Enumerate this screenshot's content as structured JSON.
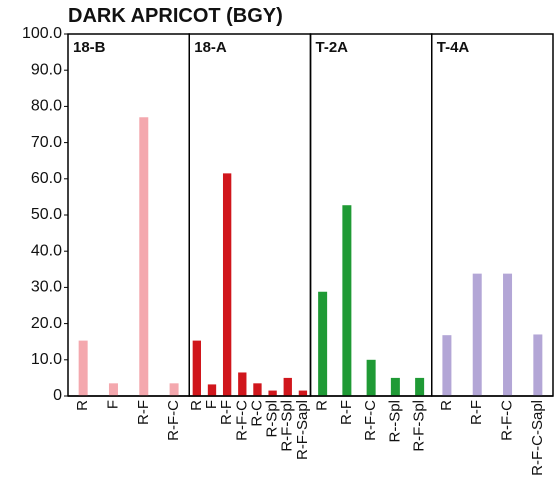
{
  "chart_data": {
    "type": "bar",
    "title": "DARK APRICOT (BGY)",
    "ylim": [
      0,
      100
    ],
    "yticks": [
      0,
      {
        "value": 10,
        "label": "10.0"
      },
      {
        "value": 20,
        "label": "20.0"
      },
      {
        "value": 30,
        "label": "30.0"
      },
      {
        "value": 40,
        "label": "40.0"
      },
      {
        "value": 50,
        "label": "50.0"
      },
      {
        "value": 60,
        "label": "60.0"
      },
      {
        "value": 70,
        "label": "70.0"
      },
      {
        "value": 80,
        "label": "80.0"
      },
      {
        "value": 90,
        "label": "90.0"
      },
      {
        "value": 100,
        "label": "100.0"
      }
    ],
    "panels": [
      {
        "name": "18-B",
        "color": "#f4a8ae",
        "categories": [
          "R",
          "F",
          "R-F",
          "R-F-C"
        ],
        "values": [
          15.3,
          3.5,
          77,
          3.5
        ]
      },
      {
        "name": "18-A",
        "color": "#d0161c",
        "categories": [
          "R",
          "F",
          "R-F",
          "R-F-C",
          "R-C",
          "R-Spl",
          "R-F-Spl",
          "R-F-Sapl"
        ],
        "values": [
          15.3,
          3.2,
          61.5,
          6.5,
          3.5,
          1.5,
          5,
          1.5
        ]
      },
      {
        "name": "T-2A",
        "color": "#1f9a35",
        "categories": [
          "R",
          "R-F",
          "R-F-C",
          "R--Spl",
          "R-F-Spl"
        ],
        "values": [
          28.8,
          52.7,
          10,
          5,
          5
        ]
      },
      {
        "name": "T-4A",
        "color": "#b3a6d6",
        "categories": [
          "R",
          "R-F",
          "R-F-C",
          "R-F-C-Sapl"
        ],
        "values": [
          16.8,
          33.8,
          33.8,
          17
        ]
      }
    ]
  }
}
